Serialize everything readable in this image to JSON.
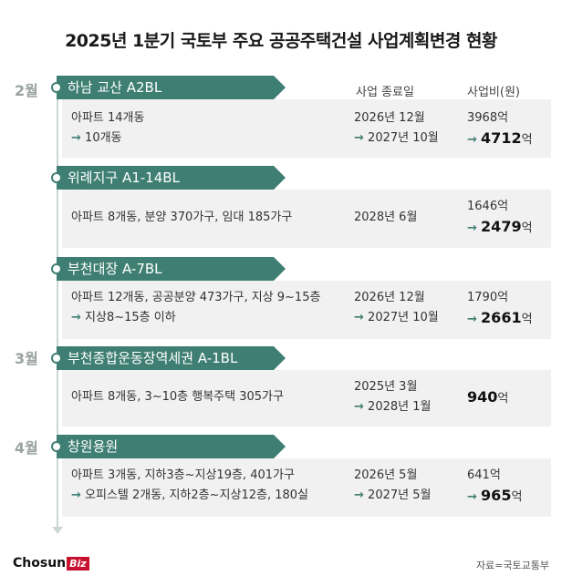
{
  "title": "2025년 1분기 국토부 주요 공공주택건설 사업계획변경 현황",
  "columns": {
    "end_date": "사업 종료일",
    "cost": "사업비(원)"
  },
  "arrow": "→",
  "months": [
    "2월",
    "3월",
    "4월"
  ],
  "projects": [
    {
      "name": "하남 교산 A2BL",
      "desc1": "아파트 14개동",
      "desc2": "10개동",
      "date1": "2026년 12월",
      "date2": "2027년 10월",
      "cost_before": "3968억",
      "cost_after_num": "4712",
      "cost_unit": "억"
    },
    {
      "name": "위례지구 A1-14BL",
      "desc1": "아파트 8개동, 분양 370가구, 임대 185가구",
      "desc2": "",
      "date1": "2028년 6월",
      "date2": "",
      "cost_before": "1646억",
      "cost_after_num": "2479",
      "cost_unit": "억"
    },
    {
      "name": "부천대장 A-7BL",
      "desc1": "아파트 12개동, 공공분양 473가구, 지상 9~15층",
      "desc2": "지상8~15층 이하",
      "date1": "2026년 12월",
      "date2": "2027년 10월",
      "cost_before": "1790억",
      "cost_after_num": "2661",
      "cost_unit": "억"
    },
    {
      "name": "부천종합운동장역세권 A-1BL",
      "desc1": "아파트 8개동, 3~10층 행복주택 305가구",
      "desc2": "",
      "date1": "2025년 3월",
      "date2": "2028년 1월",
      "cost_before": "",
      "cost_after_num": "940",
      "cost_unit": "억"
    },
    {
      "name": "창원용원",
      "desc1": "아파트 3개동, 지하3층~지상19층, 401가구",
      "desc2": "오피스텔 2개동, 지하2층~지상12층, 180실",
      "date1": "2026년 5월",
      "date2": "2027년 5월",
      "cost_before": "641억",
      "cost_after_num": "965",
      "cost_unit": "억"
    }
  ],
  "footer": {
    "logo_main": "Chosun",
    "logo_sub": "Biz",
    "source": "자료=국토교통부"
  }
}
